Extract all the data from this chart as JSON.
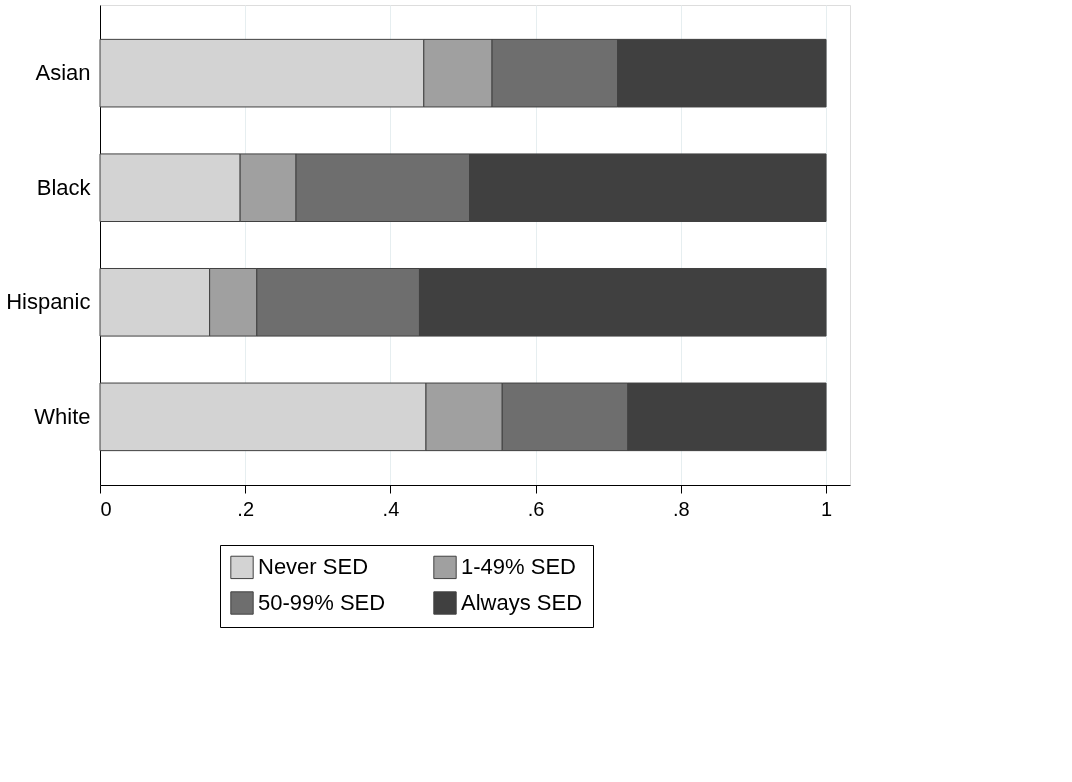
{
  "chart_data": {
    "type": "bar",
    "orientation": "horizontal",
    "stacked": true,
    "categories": [
      "Asian",
      "Black",
      "Hispanic",
      "White"
    ],
    "series": [
      {
        "name": "Never SED",
        "color": "#d3d3d3",
        "values": [
          0.446,
          0.193,
          0.151,
          0.449
        ]
      },
      {
        "name": "1-49% SED",
        "color": "#a0a0a0",
        "values": [
          0.094,
          0.077,
          0.065,
          0.105
        ]
      },
      {
        "name": "50-99% SED",
        "color": "#6e6e6e",
        "values": [
          0.173,
          0.239,
          0.224,
          0.173
        ]
      },
      {
        "name": "Always SED",
        "color": "#404040",
        "values": [
          0.287,
          0.491,
          0.56,
          0.273
        ]
      }
    ],
    "xlim": [
      0,
      1.033
    ],
    "xticks": [
      0,
      {
        "value": 0.2,
        "label": ".2"
      },
      {
        "value": 0.4,
        "label": ".4"
      },
      {
        "value": 0.6,
        "label": ".6"
      },
      {
        "value": 0.8,
        "label": ".8"
      },
      1
    ],
    "grid": "x",
    "legend": "bottom"
  }
}
